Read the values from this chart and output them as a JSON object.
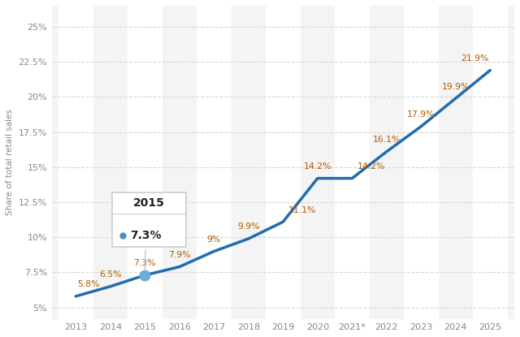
{
  "years": [
    "2013",
    "2014",
    "2015",
    "2016",
    "2017",
    "2018",
    "2019",
    "2020",
    "2021*",
    "2022",
    "2023",
    "2024",
    "2025"
  ],
  "values": [
    5.8,
    6.5,
    7.3,
    7.9,
    9.0,
    9.9,
    11.1,
    14.2,
    14.2,
    16.1,
    17.9,
    19.9,
    21.9
  ],
  "line_color": "#1f6cb0",
  "marker_color": "#4a90c4",
  "bg_color": "#ffffff",
  "plot_bg_color": "#f4f4f4",
  "col_band_color": "#ffffff",
  "grid_color": "#d8d8d8",
  "ylabel": "Share of total retail sales",
  "yticks": [
    5.0,
    7.5,
    10.0,
    12.5,
    15.0,
    17.5,
    20.0,
    22.5,
    25.0
  ],
  "ytick_labels": [
    "5%",
    "7.5%",
    "10%",
    "12.5%",
    "15%",
    "17.5%",
    "20%",
    "22.5%",
    "25%"
  ],
  "ylim": [
    4.2,
    26.5
  ],
  "xlim": [
    -0.7,
    12.7
  ],
  "tooltip_year": "2015",
  "tooltip_value": "7.3%",
  "label_color": "#b05a00",
  "tick_color": "#888888",
  "ylabel_color": "#888888"
}
